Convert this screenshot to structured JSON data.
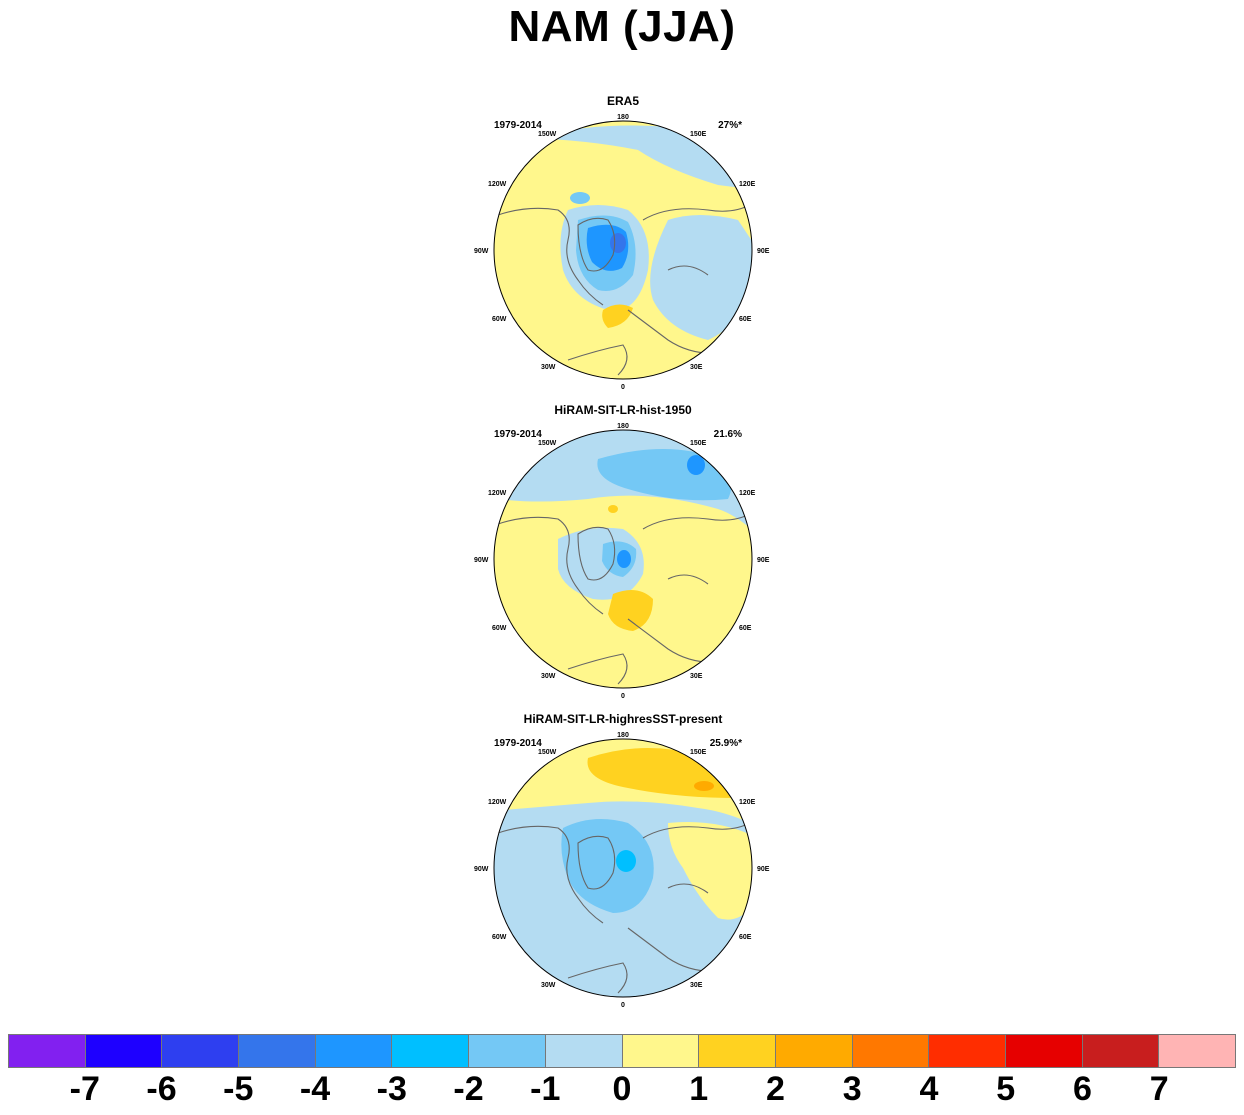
{
  "figure": {
    "title": "NAM (JJA)"
  },
  "panels": [
    {
      "title": "ERA5",
      "period": "1979-2014",
      "variance": "27%*"
    },
    {
      "title": "HiRAM-SIT-LR-hist-1950",
      "period": "1979-2014",
      "variance": "21.6%"
    },
    {
      "title": "HiRAM-SIT-LR-highresSST-present",
      "period": "1979-2014",
      "variance": "25.9%*"
    }
  ],
  "map_labels": {
    "top": "180",
    "bottom": "0",
    "left_mid": "90W",
    "right_mid": "90E",
    "upper_left": "150W",
    "upper_right": "150E",
    "mid_upper_left": "120W",
    "mid_upper_right": "120E",
    "mid_lower_left": "60W",
    "mid_lower_right": "60E",
    "lower_left": "30W",
    "lower_right": "30E"
  },
  "colorbar": {
    "colors": [
      "#8220f0",
      "#1e00ff",
      "#2e3ff0",
      "#3475eb",
      "#1e96ff",
      "#00bfff",
      "#74c8f5",
      "#b4dcf2",
      "#fff78c",
      "#ffd220",
      "#ffaa00",
      "#ff7800",
      "#ff2d00",
      "#e60000",
      "#c81e1e",
      "#ffb4b4"
    ],
    "labels": [
      "-7",
      "-6",
      "-5",
      "-4",
      "-3",
      "-2",
      "-1",
      "0",
      "1",
      "2",
      "3",
      "4",
      "5",
      "6",
      "7"
    ]
  }
}
